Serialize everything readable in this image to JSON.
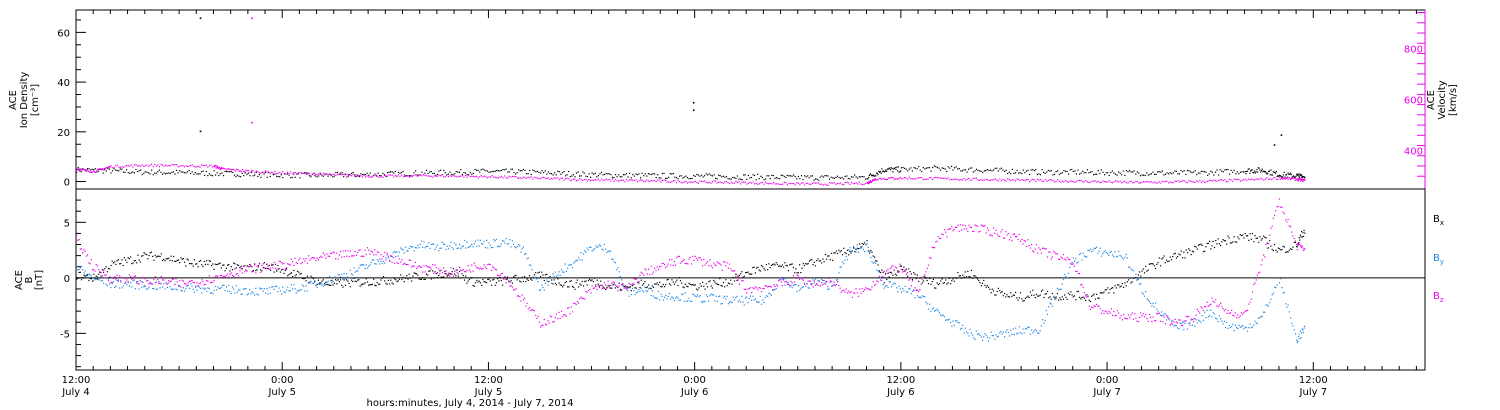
{
  "colors": {
    "black": "#000000",
    "blue": "#1e88e5",
    "magenta": "#ee00ee"
  },
  "x_axis": {
    "ticks": [
      {
        "t": 0,
        "time": "12:00",
        "date": "July 4"
      },
      {
        "t": 12,
        "time": "0:00",
        "date": "July 5"
      },
      {
        "t": 24,
        "time": "12:00",
        "date": "July 5"
      },
      {
        "t": 36,
        "time": "0:00",
        "date": "July 6"
      },
      {
        "t": 48,
        "time": "12:00",
        "date": "July 6"
      },
      {
        "t": 60,
        "time": "0:00",
        "date": "July 7"
      },
      {
        "t": 72,
        "time": "12:00",
        "date": "July 7"
      }
    ],
    "range_hours": [
      0,
      78.5
    ],
    "label": "hours:minutes, July  4, 2014 - July  7, 2014"
  },
  "chart_data": [
    {
      "type": "scatter",
      "panel": "top",
      "ylabel_left": [
        "ACE",
        "Ion Density",
        "[cm⁻³]"
      ],
      "ylabel_right": [
        "ACE",
        "Velocity",
        "[km/s]"
      ],
      "ylim_left": [
        -3,
        69
      ],
      "ylim_right": [
        250,
        950
      ],
      "y_ticks_left": [
        0,
        20,
        40,
        60
      ],
      "y_ticks_right": [
        400,
        600,
        800
      ],
      "series": [
        {
          "name": "",
          "axis": "left",
          "color": "black",
          "x": [
            0,
            2,
            4,
            6,
            8,
            10,
            12,
            14,
            16,
            18,
            20,
            22,
            24,
            26,
            28,
            30,
            32,
            34,
            36,
            38,
            40,
            42,
            44,
            46,
            47,
            48,
            50,
            52,
            54,
            56,
            58,
            60,
            62,
            64,
            66,
            68,
            69,
            70,
            71,
            71.5
          ],
          "y": [
            5,
            4.5,
            4,
            3.8,
            3.5,
            3.2,
            2.8,
            2.7,
            2.9,
            3.2,
            3.6,
            3.9,
            4.3,
            4.1,
            3.5,
            3,
            2.7,
            2.5,
            2.4,
            2.2,
            2,
            1.8,
            1.8,
            2,
            5,
            5,
            5.5,
            5,
            4.5,
            4,
            4,
            3.8,
            3.7,
            3.6,
            3.8,
            4.5,
            4.8,
            3,
            2.5,
            2
          ]
        },
        {
          "name": "",
          "axis": "right",
          "color": "magenta",
          "x": [
            0,
            1,
            2,
            4,
            6,
            8,
            8.5,
            10,
            12,
            14,
            16,
            18,
            20,
            22,
            24,
            26,
            28,
            30,
            32,
            34,
            36,
            38,
            40,
            42,
            44,
            46,
            46.5,
            48,
            50,
            52,
            54,
            56,
            58,
            60,
            62,
            64,
            66,
            68,
            70,
            71,
            71.5
          ],
          "y": [
            330,
            320,
            340,
            345,
            343,
            342,
            330,
            322,
            315,
            310,
            305,
            302,
            304,
            303,
            300,
            296,
            292,
            288,
            285,
            283,
            280,
            278,
            275,
            272,
            272,
            275,
            292,
            295,
            293,
            290,
            288,
            285,
            283,
            280,
            278,
            280,
            283,
            287,
            295,
            290,
            285
          ]
        }
      ],
      "outliers_left": [
        {
          "x": 7.2,
          "y": 66,
          "color": "black"
        },
        {
          "x": 7.2,
          "y": 20.5,
          "color": "black"
        },
        {
          "x": 10.2,
          "y": 66,
          "color": "magenta"
        },
        {
          "x": 10.2,
          "y": 24,
          "color": "magenta"
        },
        {
          "x": 35.9,
          "y": 32,
          "color": "black"
        },
        {
          "x": 35.9,
          "y": 29,
          "color": "black"
        },
        {
          "x": 70.1,
          "y": 19,
          "color": "black"
        },
        {
          "x": 69.7,
          "y": 15,
          "color": "black"
        }
      ]
    },
    {
      "type": "scatter",
      "panel": "bottom",
      "ylabel_left": [
        "ACE",
        "B",
        "[nT]"
      ],
      "ylim": [
        -8.3,
        8
      ],
      "y_ticks": [
        -5,
        0,
        5
      ],
      "legend": [
        "Bx",
        "By",
        "Bz"
      ],
      "series": [
        {
          "name": "Bx",
          "color": "black",
          "x": [
            0,
            1,
            2,
            3,
            4,
            5,
            6,
            7,
            8,
            9,
            10,
            11,
            12,
            13,
            14,
            15,
            16,
            17,
            18,
            19,
            20,
            21,
            22,
            23,
            24,
            25,
            26,
            27,
            28,
            29,
            30,
            31,
            32,
            33,
            34,
            35,
            36,
            37,
            38,
            39,
            40,
            41,
            42,
            43,
            44,
            45,
            46,
            47,
            48,
            49,
            50,
            51,
            52,
            53,
            54,
            55,
            56,
            57,
            58,
            59,
            60,
            61,
            62,
            63,
            64,
            65,
            66,
            67,
            68,
            69,
            70,
            71,
            71.5
          ],
          "y": [
            0.3,
            0,
            1.2,
            1.6,
            2,
            2,
            1.6,
            1.3,
            1.2,
            1,
            0.9,
            1.1,
            0.8,
            0.2,
            -0.3,
            -0.5,
            -0.4,
            -0.3,
            -0.2,
            0,
            0.2,
            0.4,
            0.6,
            -0.3,
            -0.4,
            -0.2,
            0,
            0.2,
            -0.3,
            -0.6,
            -0.2,
            -0.7,
            -0.8,
            -0.5,
            -0.6,
            -0.3,
            -0.7,
            -0.5,
            -0.3,
            0.5,
            1,
            1.1,
            0.8,
            1.5,
            2,
            2.5,
            3,
            0,
            0.8,
            0,
            -0.5,
            0,
            0.5,
            -0.8,
            -1.5,
            -1.7,
            -1.3,
            -1.6,
            -1.5,
            -1.7,
            -1.2,
            -0.5,
            0.5,
            1.5,
            2,
            2.5,
            3,
            3.5,
            3.8,
            3.5,
            2.5,
            3,
            4.5
          ]
        },
        {
          "name": "By",
          "color": "blue",
          "x": [
            0,
            1,
            2,
            3,
            4,
            5,
            6,
            7,
            8,
            9,
            10,
            11,
            12,
            13,
            14,
            15,
            16,
            17,
            18,
            19,
            20,
            21,
            22,
            23,
            24,
            25,
            26,
            27,
            28,
            29,
            30,
            31,
            32,
            33,
            34,
            35,
            36,
            37,
            38,
            39,
            40,
            41,
            42,
            43,
            44,
            45,
            46,
            47,
            48,
            49,
            50,
            51,
            52,
            53,
            54,
            55,
            56,
            57,
            58,
            59,
            60,
            61,
            62,
            63,
            64,
            65,
            66,
            67,
            68,
            69,
            70,
            71,
            71.5
          ],
          "y": [
            1,
            0,
            -0.5,
            -0.5,
            -0.6,
            -0.7,
            -0.8,
            -0.9,
            -1,
            -1,
            -1.1,
            -1.2,
            -1,
            -0.9,
            -0.5,
            0,
            0.5,
            1.2,
            1.8,
            2.5,
            3,
            2.8,
            3,
            3.2,
            3.1,
            3.3,
            2.5,
            -1,
            0.5,
            1.5,
            2.8,
            2.7,
            -1.3,
            -1,
            -1.6,
            -1.6,
            -1.8,
            -1.8,
            -2,
            -2,
            -2,
            0,
            -1,
            -0.3,
            -0.7,
            2.5,
            2.8,
            -0.5,
            -1,
            -1.5,
            -3,
            -4,
            -5,
            -5.3,
            -5,
            -4.7,
            -4.6,
            -1.5,
            1.5,
            2.5,
            2.3,
            2,
            -1,
            -3,
            -4.5,
            -4,
            -3,
            -4.3,
            -4.5,
            -3.5,
            0,
            -5.5,
            -4.5
          ]
        },
        {
          "name": "Bz",
          "color": "magenta",
          "x": [
            0,
            1,
            2,
            3,
            4,
            5,
            6,
            7,
            8,
            9,
            10,
            11,
            12,
            13,
            14,
            15,
            16,
            17,
            18,
            19,
            20,
            21,
            22,
            23,
            24,
            25,
            26,
            27,
            28,
            29,
            30,
            31,
            32,
            33,
            34,
            35,
            36,
            37,
            38,
            39,
            40,
            41,
            42,
            43,
            44,
            45,
            46,
            47,
            48,
            49,
            50,
            51,
            52,
            53,
            54,
            55,
            56,
            57,
            58,
            59,
            60,
            61,
            62,
            63,
            64,
            65,
            66,
            67,
            68,
            69,
            70,
            71,
            71.5
          ],
          "y": [
            3.5,
            1,
            0,
            0,
            -0.3,
            -0.2,
            -0.5,
            -0.3,
            0,
            0.5,
            0.8,
            1,
            1.2,
            1.5,
            1.8,
            2,
            2.2,
            2.4,
            2,
            1.5,
            1,
            0.8,
            0.5,
            1,
            1.3,
            0,
            -2,
            -4,
            -3.5,
            -2.5,
            -1,
            -0.5,
            -1,
            0.5,
            1,
            1.6,
            1.7,
            1.3,
            1,
            -1,
            -0.8,
            -0.5,
            0,
            -0.5,
            -0.3,
            -1.5,
            -1,
            0.5,
            1,
            -1.5,
            3.5,
            4.5,
            4.6,
            4.3,
            4,
            3.5,
            2.5,
            2,
            1.5,
            -2.5,
            -3,
            -3.5,
            -3.5,
            -3.5,
            -4,
            -3.5,
            -2,
            -3,
            -3.3,
            1.5,
            7,
            3,
            2.5
          ]
        }
      ]
    }
  ]
}
